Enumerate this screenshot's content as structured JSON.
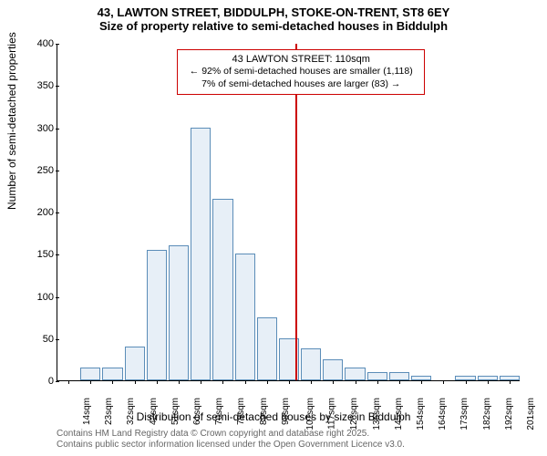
{
  "title": {
    "line1": "43, LAWTON STREET, BIDDULPH, STOKE-ON-TRENT, ST8 6EY",
    "line2": "Size of property relative to semi-detached houses in Biddulph"
  },
  "ylabel": "Number of semi-detached properties",
  "xlabel": "Distribution of semi-detached houses by size in Biddulph",
  "footer": {
    "line1": "Contains HM Land Registry data © Crown copyright and database right 2025.",
    "line2": "Contains public sector information licensed under the Open Government Licence v3.0."
  },
  "chart": {
    "type": "histogram",
    "ylim": [
      0,
      400
    ],
    "yticks": [
      0,
      50,
      100,
      150,
      200,
      250,
      300,
      350,
      400
    ],
    "xticks": [
      "14sqm",
      "23sqm",
      "32sqm",
      "42sqm",
      "51sqm",
      "61sqm",
      "70sqm",
      "79sqm",
      "89sqm",
      "98sqm",
      "107sqm",
      "117sqm",
      "126sqm",
      "135sqm",
      "145sqm",
      "154sqm",
      "164sqm",
      "173sqm",
      "182sqm",
      "192sqm",
      "201sqm"
    ],
    "bars": [
      {
        "x_index": 0,
        "value": 0
      },
      {
        "x_index": 1,
        "value": 15
      },
      {
        "x_index": 2,
        "value": 15
      },
      {
        "x_index": 3,
        "value": 40
      },
      {
        "x_index": 4,
        "value": 155
      },
      {
        "x_index": 5,
        "value": 160
      },
      {
        "x_index": 6,
        "value": 300
      },
      {
        "x_index": 7,
        "value": 215
      },
      {
        "x_index": 8,
        "value": 150
      },
      {
        "x_index": 9,
        "value": 75
      },
      {
        "x_index": 10,
        "value": 50
      },
      {
        "x_index": 11,
        "value": 38
      },
      {
        "x_index": 12,
        "value": 25
      },
      {
        "x_index": 13,
        "value": 15
      },
      {
        "x_index": 14,
        "value": 10
      },
      {
        "x_index": 15,
        "value": 10
      },
      {
        "x_index": 16,
        "value": 5
      },
      {
        "x_index": 17,
        "value": 0
      },
      {
        "x_index": 18,
        "value": 5
      },
      {
        "x_index": 19,
        "value": 5
      },
      {
        "x_index": 20,
        "value": 5
      }
    ],
    "bar_fill": "#e7eff7",
    "bar_stroke": "#5b8db8",
    "refline": {
      "x_index": 10.3,
      "color": "#cc0000"
    },
    "callout": {
      "title": "43 LAWTON STREET: 110sqm",
      "line2": "← 92% of semi-detached houses are smaller (1,118)",
      "line3": "7% of semi-detached houses are larger (83) →",
      "border_color": "#cc0000"
    }
  }
}
